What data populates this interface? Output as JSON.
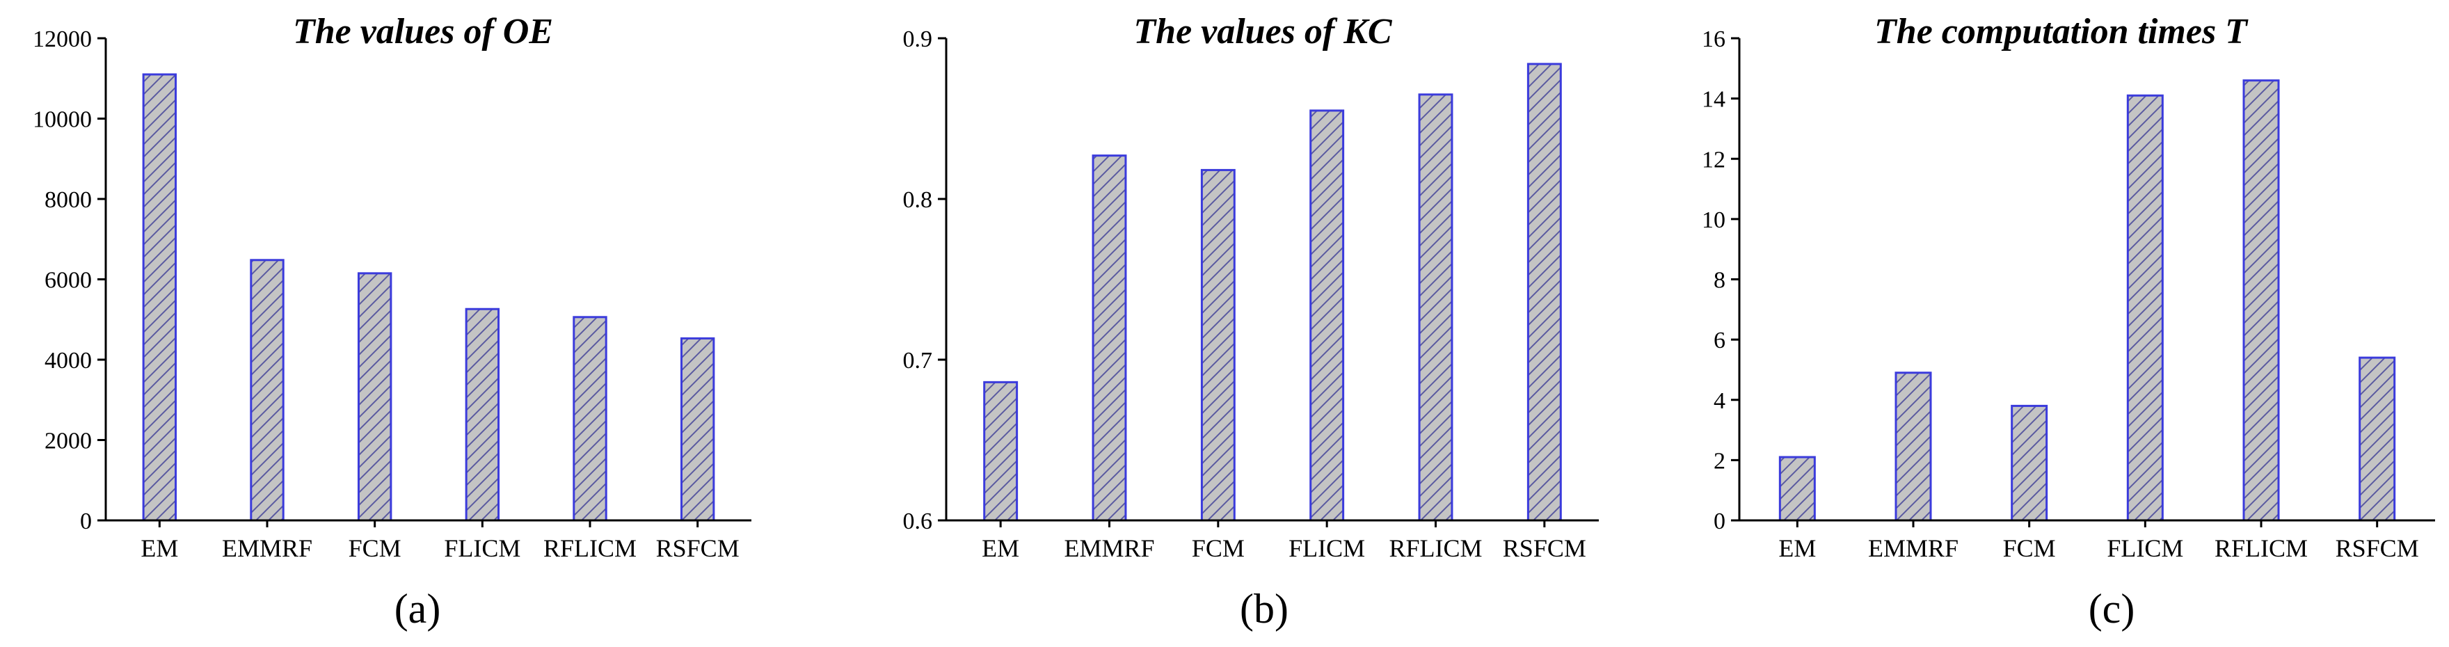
{
  "colors": {
    "bar_fill": "#c4c4c4",
    "bar_edge": "#3b3bdc",
    "hatch": "#5a5aa0"
  },
  "chart_data": [
    {
      "type": "bar",
      "title": "The values of OE",
      "caption": "(a)",
      "categories": [
        "EM",
        "EMMRF",
        "FCM",
        "FLICM",
        "RFLICM",
        "RSFCM"
      ],
      "values": [
        11100,
        6480,
        6150,
        5260,
        5060,
        4530
      ],
      "ylim": [
        0,
        12000
      ],
      "yticks": [
        0,
        2000,
        4000,
        6000,
        8000,
        10000,
        12000
      ],
      "ytick_labels": [
        "0",
        "2000",
        "4000",
        "6000",
        "8000",
        "10000",
        "12000"
      ],
      "xlabel": "",
      "ylabel": ""
    },
    {
      "type": "bar",
      "title": "The values of KC",
      "caption": "(b)",
      "categories": [
        "EM",
        "EMMRF",
        "FCM",
        "FLICM",
        "RFLICM",
        "RSFCM"
      ],
      "values": [
        0.686,
        0.827,
        0.818,
        0.855,
        0.865,
        0.884
      ],
      "ylim": [
        0.6,
        0.9
      ],
      "yticks": [
        0.6,
        0.7,
        0.8,
        0.9
      ],
      "ytick_labels": [
        "0.6",
        "0.7",
        "0.8",
        "0.9"
      ],
      "xlabel": "",
      "ylabel": ""
    },
    {
      "type": "bar",
      "title": "The computation times T",
      "caption": "(c)",
      "categories": [
        "EM",
        "EMMRF",
        "FCM",
        "FLICM",
        "RFLICM",
        "RSFCM"
      ],
      "values": [
        2.1,
        4.9,
        3.8,
        14.1,
        14.6,
        5.4
      ],
      "ylim": [
        0,
        16
      ],
      "yticks": [
        0,
        2,
        4,
        6,
        8,
        10,
        12,
        14,
        16
      ],
      "ytick_labels": [
        "0",
        "2",
        "4",
        "6",
        "8",
        "10",
        "12",
        "14",
        "16"
      ],
      "xlabel": "",
      "ylabel": ""
    }
  ]
}
